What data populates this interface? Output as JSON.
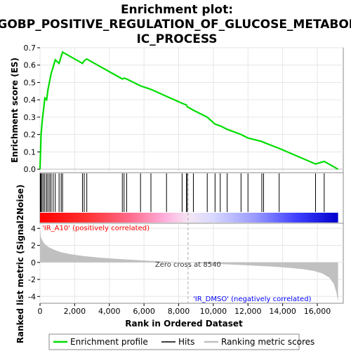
{
  "chart_data": {
    "type": "line",
    "title_lines": [
      "Enrichment plot:",
      "GOBP_POSITIVE_REGULATION_OF_GLUCOSE_METABOL",
      "IC_PROCESS"
    ],
    "xlabel": "Rank in Ordered Dataset",
    "ylabel_top": "Enrichment score (ES)",
    "ylabel_bottom": "Ranked list metric (Signal2Noise)",
    "xlim": [
      0,
      17500
    ],
    "x_ticks": [
      0,
      2000,
      4000,
      6000,
      8000,
      10000,
      12000,
      14000,
      16000
    ],
    "x_tick_labels": [
      "0",
      "2,000",
      "4,000",
      "6,000",
      "8,000",
      "10,000",
      "12,000",
      "14,000",
      "16,000"
    ],
    "es_ylim": [
      -0.02,
      0.7
    ],
    "es_ticks": [
      0.0,
      0.1,
      0.2,
      0.3,
      0.4,
      0.5,
      0.6,
      0.7
    ],
    "es_tick_labels": [
      "0.0",
      "0.1",
      "0.2",
      "0.3",
      "0.4",
      "0.5",
      "0.6",
      "0.7"
    ],
    "metric_ylim": [
      -4.8,
      4.6
    ],
    "metric_ticks": [
      -4,
      -2,
      0,
      2,
      4
    ],
    "metric_tick_labels": [
      "-4",
      "-2",
      "0",
      "2",
      "4"
    ],
    "enrichment_profile": {
      "name": "Enrichment profile",
      "color": "#00dd00",
      "x": [
        0,
        60,
        120,
        200,
        280,
        380,
        460,
        560,
        640,
        760,
        880,
        1100,
        1220,
        1300,
        2450,
        2550,
        2700,
        4750,
        4850,
        5000,
        5800,
        6400,
        7300,
        8200,
        8450,
        8500,
        8850,
        9650,
        10100,
        10400,
        10800,
        11600,
        12000,
        12800,
        12900,
        13800,
        15900,
        16400,
        17200
      ],
      "y": [
        0.0,
        0.2,
        0.27,
        0.34,
        0.41,
        0.4,
        0.46,
        0.51,
        0.55,
        0.59,
        0.63,
        0.61,
        0.65,
        0.675,
        0.61,
        0.625,
        0.635,
        0.52,
        0.525,
        0.52,
        0.48,
        0.46,
        0.42,
        0.38,
        0.37,
        0.36,
        0.34,
        0.3,
        0.26,
        0.25,
        0.23,
        0.2,
        0.18,
        0.16,
        0.155,
        0.12,
        0.03,
        0.045,
        0.0
      ]
    },
    "hits": [
      20,
      60,
      120,
      200,
      280,
      380,
      460,
      560,
      640,
      760,
      880,
      1100,
      1220,
      1300,
      2450,
      2550,
      2700,
      4750,
      4850,
      5000,
      5800,
      6400,
      7300,
      8200,
      8450,
      8500,
      8850,
      9650,
      10100,
      10400,
      10800,
      11600,
      12000,
      12800,
      12900,
      13800,
      15900,
      16400
    ],
    "hits_label": "Hits",
    "ranking_metric": {
      "name": "Ranking metric scores",
      "x": [
        0,
        50,
        150,
        300,
        500,
        800,
        1200,
        1800,
        2500,
        3500,
        4500,
        5500,
        6500,
        7500,
        8540,
        9500,
        10500,
        11500,
        12500,
        13500,
        14500,
        15200,
        15800,
        16300,
        16700,
        16950,
        17100,
        17200
      ],
      "y": [
        4.0,
        3.0,
        2.5,
        2.1,
        1.8,
        1.5,
        1.2,
        0.95,
        0.75,
        0.55,
        0.4,
        0.28,
        0.16,
        0.07,
        0.0,
        -0.12,
        -0.2,
        -0.3,
        -0.4,
        -0.5,
        -0.65,
        -0.8,
        -1.0,
        -1.3,
        -1.8,
        -2.5,
        -3.5,
        -4.6
      ]
    },
    "zero_cross_label": "Zero cross at 8540",
    "zero_cross": 8540,
    "pos_label": "'IR_A10' (positively correlated)",
    "neg_label": "'IR_DMSO' (negatively correlated)",
    "pos_color": "#ff0000",
    "neg_color": "#0000ff",
    "legend": [
      "Enrichment profile",
      "Hits",
      "Ranking metric scores"
    ]
  }
}
